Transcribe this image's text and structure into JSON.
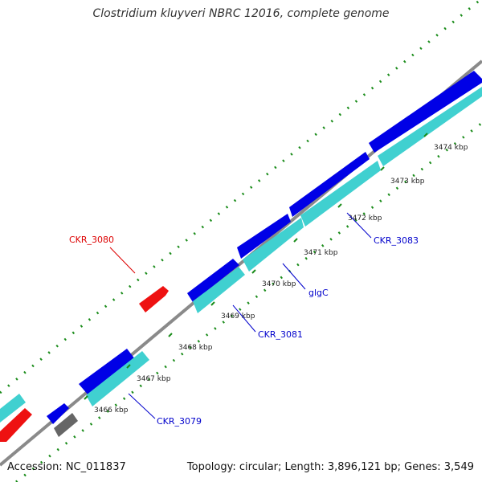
{
  "title": "Clostridium kluyveri NBRC 12016, complete genome",
  "accession": "Accession: NC_011837",
  "summary": "Topology: circular; Length: 3,896,121 bp; Genes: 3,549",
  "colors": {
    "backbone": "#8a8a8a",
    "forward_cds": "#0000e6",
    "forward_rna": "#40d0d0",
    "reverse_cds": "#ee1111",
    "other_feature": "#666666",
    "gc_ticks": "#1a8c1a",
    "label_blue": "#0000cc",
    "label_red": "#dd0000"
  },
  "ticks": {
    "items": [
      {
        "label": "3466 kbp"
      },
      {
        "label": "3467 kbp"
      },
      {
        "label": "3468 kbp"
      },
      {
        "label": "3469 kbp"
      },
      {
        "label": "3470 kbp"
      },
      {
        "label": "3471 kbp"
      },
      {
        "label": "3472 kbp"
      },
      {
        "label": "3473 kbp"
      },
      {
        "label": "3474 kbp"
      }
    ]
  },
  "gene_labels": [
    {
      "name": "CKR_3080",
      "color": "#dd0000"
    },
    {
      "name": "CKR_3079",
      "color": "#0000cc"
    },
    {
      "name": "CKR_3081",
      "color": "#0000cc"
    },
    {
      "name": "glgC",
      "color": "#0000cc"
    },
    {
      "name": "CKR_3083",
      "color": "#0000cc"
    }
  ]
}
